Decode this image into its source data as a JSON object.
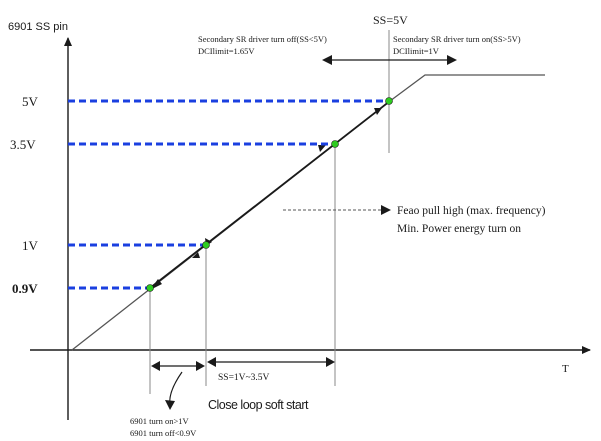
{
  "y_axis_title": "6901 SS pin",
  "x_axis_title": "T",
  "y_levels": [
    {
      "label": "5V"
    },
    {
      "label": "3.5V"
    },
    {
      "label": "1V"
    },
    {
      "label": "0.9V"
    }
  ],
  "ss5_label": "SS=5V",
  "sr_off_line1": "Secondary SR driver turn off(SS<5V)",
  "sr_off_line2": "DCIlimit=1.65V",
  "sr_on_line1": "Secondary SR driver turn on(SS>5V)",
  "sr_on_line2": "DCIlimit=1V",
  "feao_line1": "Feao pull high (max. frequency)",
  "feao_line2": "Min. Power energy turn on",
  "ss_range_label": "SS=1V~3.5V",
  "close_loop_label": "Close loop soft start",
  "turn_on_label": "6901 turn on>1V",
  "turn_off_label": "6901 turn off<0.9V",
  "colors": {
    "dash": "#1a3fe0",
    "point": "#2ecc1f",
    "line": "#1a1a1a",
    "guide": "#8a8a8a"
  }
}
